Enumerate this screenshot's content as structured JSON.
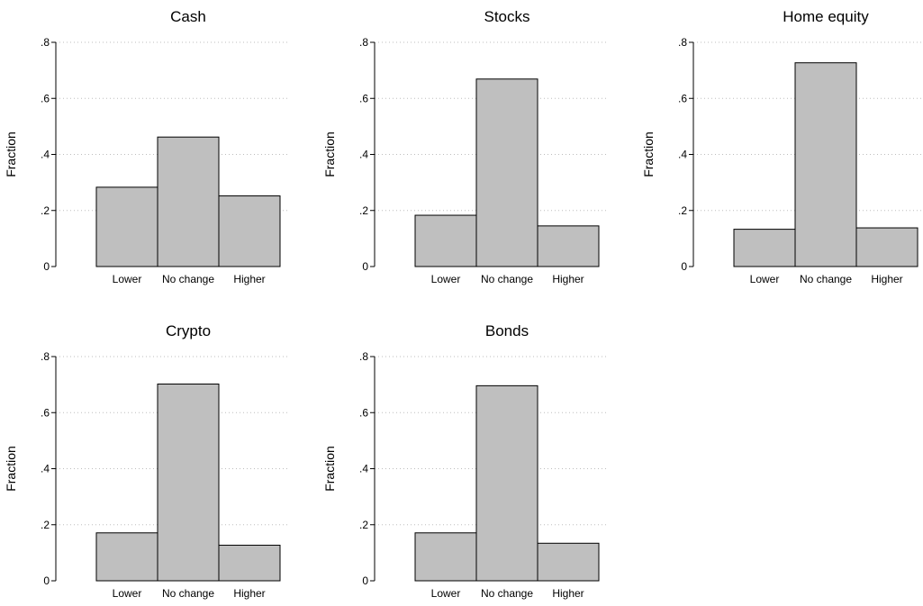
{
  "style": {
    "bar_fill": "#bfbfbf",
    "bar_stroke": "#000000",
    "grid_color": "#bdbdbd",
    "axis_color": "#000000",
    "background": "#ffffff"
  },
  "chart_data": [
    {
      "type": "bar",
      "title": "Cash",
      "categories": [
        "Lower",
        "No change",
        "Higher"
      ],
      "values": [
        0.283,
        0.462,
        0.252
      ],
      "xlabel": "",
      "ylabel": "Fraction",
      "ylim": [
        0,
        0.8
      ],
      "yticks": [
        0,
        0.2,
        0.4,
        0.6,
        0.8
      ],
      "ytick_labels": [
        "0",
        ".2",
        ".4",
        ".6",
        ".8"
      ],
      "grid": "horizontal dotted"
    },
    {
      "type": "bar",
      "title": "Stocks",
      "categories": [
        "Lower",
        "No change",
        "Higher"
      ],
      "values": [
        0.183,
        0.669,
        0.145
      ],
      "xlabel": "",
      "ylabel": "Fraction",
      "ylim": [
        0,
        0.8
      ],
      "yticks": [
        0,
        0.2,
        0.4,
        0.6,
        0.8
      ],
      "ytick_labels": [
        "0",
        ".2",
        ".4",
        ".6",
        ".8"
      ],
      "grid": "horizontal dotted"
    },
    {
      "type": "bar",
      "title": "Home equity",
      "categories": [
        "Lower",
        "No change",
        "Higher"
      ],
      "values": [
        0.133,
        0.727,
        0.138
      ],
      "xlabel": "",
      "ylabel": "Fraction",
      "ylim": [
        0,
        0.8
      ],
      "yticks": [
        0,
        0.2,
        0.4,
        0.6,
        0.8
      ],
      "ytick_labels": [
        "0",
        ".2",
        ".4",
        ".6",
        ".8"
      ],
      "grid": "horizontal dotted"
    },
    {
      "type": "bar",
      "title": "Crypto",
      "categories": [
        "Lower",
        "No change",
        "Higher"
      ],
      "values": [
        0.171,
        0.702,
        0.127
      ],
      "xlabel": "",
      "ylabel": "Fraction",
      "ylim": [
        0,
        0.8
      ],
      "yticks": [
        0,
        0.2,
        0.4,
        0.6,
        0.8
      ],
      "ytick_labels": [
        "0",
        ".2",
        ".4",
        ".6",
        ".8"
      ],
      "grid": "horizontal dotted"
    },
    {
      "type": "bar",
      "title": "Bonds",
      "categories": [
        "Lower",
        "No change",
        "Higher"
      ],
      "values": [
        0.171,
        0.696,
        0.134
      ],
      "xlabel": "",
      "ylabel": "Fraction",
      "ylim": [
        0,
        0.8
      ],
      "yticks": [
        0,
        0.2,
        0.4,
        0.6,
        0.8
      ],
      "ytick_labels": [
        "0",
        ".2",
        ".4",
        ".6",
        ".8"
      ],
      "grid": "horizontal dotted"
    }
  ]
}
